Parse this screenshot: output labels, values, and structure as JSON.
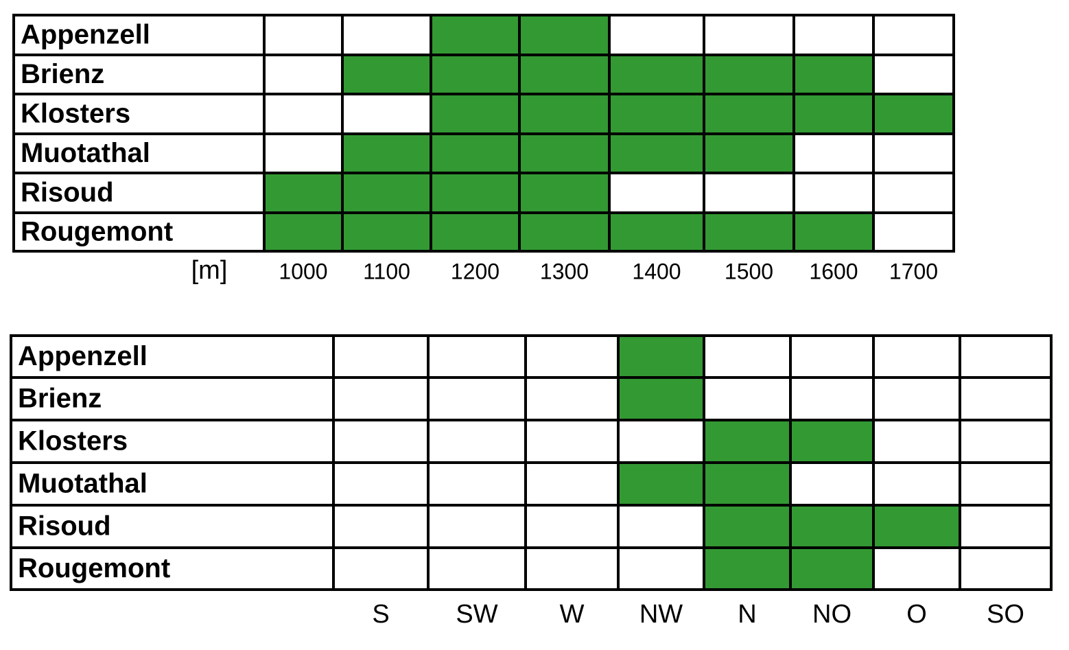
{
  "tables": [
    {
      "unit": "[m]",
      "columns": [
        "1000",
        "1100",
        "1200",
        "1300",
        "1400",
        "1500",
        "1600",
        "1700"
      ],
      "rows": [
        {
          "label": "Appenzell",
          "cells": [
            0,
            0,
            1,
            1,
            0,
            0,
            0,
            0
          ]
        },
        {
          "label": "Brienz",
          "cells": [
            0,
            1,
            1,
            1,
            1,
            1,
            1,
            0
          ]
        },
        {
          "label": "Klosters",
          "cells": [
            0,
            0,
            1,
            1,
            1,
            1,
            1,
            1
          ]
        },
        {
          "label": "Muotathal",
          "cells": [
            0,
            1,
            1,
            1,
            1,
            1,
            0,
            0
          ]
        },
        {
          "label": "Risoud",
          "cells": [
            1,
            1,
            1,
            1,
            0,
            0,
            0,
            0
          ]
        },
        {
          "label": "Rougemont",
          "cells": [
            1,
            1,
            1,
            1,
            1,
            1,
            1,
            0
          ]
        }
      ]
    },
    {
      "columns": [
        "S",
        "SW",
        "W",
        "NW",
        "N",
        "NO",
        "O",
        "SO"
      ],
      "rows": [
        {
          "label": "Appenzell",
          "cells": [
            0,
            0,
            0,
            1,
            0,
            0,
            0,
            0
          ]
        },
        {
          "label": "Brienz",
          "cells": [
            0,
            0,
            0,
            1,
            0,
            0,
            0,
            0
          ]
        },
        {
          "label": "Klosters",
          "cells": [
            0,
            0,
            0,
            0,
            1,
            1,
            0,
            0
          ]
        },
        {
          "label": "Muotathal",
          "cells": [
            0,
            0,
            0,
            1,
            1,
            0,
            0,
            0
          ]
        },
        {
          "label": "Risoud",
          "cells": [
            0,
            0,
            0,
            0,
            1,
            1,
            1,
            0
          ]
        },
        {
          "label": "Rougemont",
          "cells": [
            0,
            0,
            0,
            0,
            1,
            1,
            0,
            0
          ]
        }
      ]
    }
  ]
}
